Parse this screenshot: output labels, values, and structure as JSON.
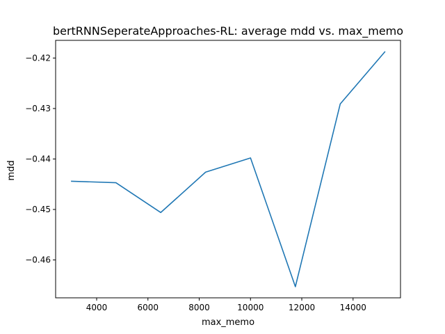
{
  "chart_data": {
    "type": "line",
    "title": "bertRNNSeperateApproaches-RL: average mdd vs. max_memo",
    "xlabel": "max_memo",
    "ylabel": "mdd",
    "xlim": [
      2400,
      15850
    ],
    "ylim": [
      -0.4675,
      -0.4165
    ],
    "xticks": [
      4000,
      6000,
      8000,
      10000,
      12000,
      14000
    ],
    "yticks": [
      -0.46,
      -0.45,
      -0.44,
      -0.43,
      -0.42
    ],
    "grid": false,
    "series": [
      {
        "color": "#1f77b4",
        "x": [
          3000,
          4750,
          6500,
          8250,
          10000,
          11750,
          13500,
          15250
        ],
        "y": [
          -0.4444,
          -0.4447,
          -0.4506,
          -0.4426,
          -0.4398,
          -0.4653,
          -0.4291,
          -0.4187
        ]
      }
    ]
  }
}
